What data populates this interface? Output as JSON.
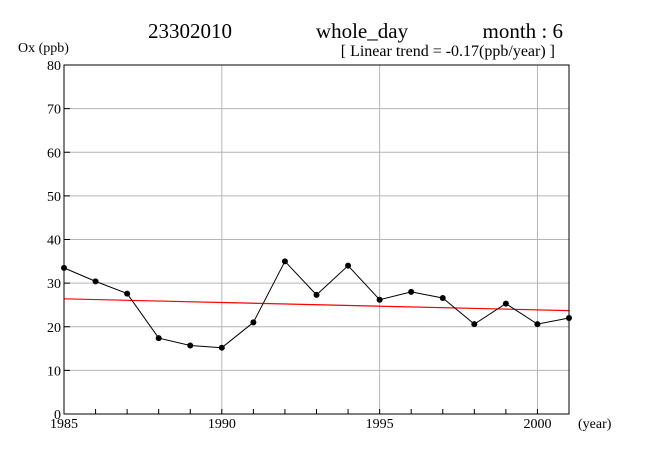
{
  "header": {
    "station": "23302010",
    "period": "whole_day",
    "month": "month : 6",
    "trend": "[ Linear trend = -0.17(ppb/year) ]"
  },
  "chart_data": {
    "type": "line",
    "ylabel": "Ox (ppb)",
    "xlabel": "(year)",
    "xlim": [
      1985,
      2001
    ],
    "ylim": [
      0,
      80
    ],
    "x_ticks": [
      1985,
      1990,
      1995,
      2000
    ],
    "y_ticks": [
      0,
      10,
      20,
      30,
      40,
      50,
      60,
      70,
      80
    ],
    "grid": true,
    "series": [
      {
        "x": [
          1985,
          1986,
          1987,
          1988,
          1989,
          1990,
          1991,
          1992,
          1993,
          1994,
          1995,
          1996,
          1997,
          1998,
          1999,
          2000,
          2001
        ],
        "values": [
          33.5,
          30.4,
          27.6,
          17.4,
          15.7,
          15.2,
          21.0,
          35.0,
          27.3,
          34.0,
          26.2,
          28.0,
          26.6,
          20.6,
          25.3,
          20.6,
          22.0
        ],
        "color": "#000000"
      }
    ],
    "trend_line": {
      "x": [
        1985,
        2001
      ],
      "values": [
        26.4,
        23.7
      ],
      "color": "#ff0000"
    }
  }
}
